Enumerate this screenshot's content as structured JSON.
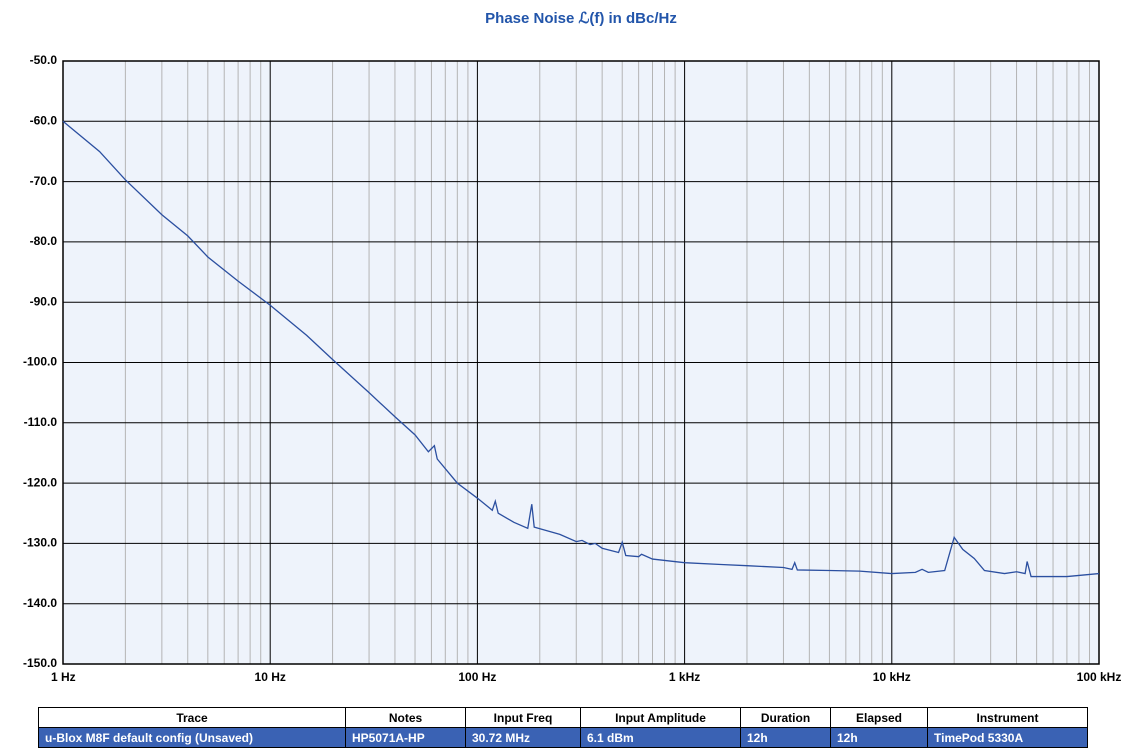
{
  "chart_data": {
    "type": "line",
    "title": "Phase Noise ℒ(f) in dBc/Hz",
    "x": [
      1,
      1.5,
      2,
      3,
      4,
      5,
      7,
      10,
      15,
      20,
      30,
      40,
      50,
      58,
      62,
      64,
      80,
      100,
      118,
      122,
      126,
      150,
      175,
      183,
      188,
      250,
      300,
      320,
      350,
      370,
      400,
      480,
      500,
      520,
      600,
      620,
      700,
      1000,
      1500,
      2000,
      3000,
      3300,
      3400,
      3500,
      5000,
      7000,
      10000,
      13000,
      14000,
      15000,
      18000,
      20000,
      22000,
      25000,
      28000,
      35000,
      40000,
      44000,
      45000,
      47000,
      70000,
      100000
    ],
    "values": [
      -60,
      -65,
      -69.7,
      -75.5,
      -79,
      -82.5,
      -86.5,
      -90.5,
      -95.5,
      -99.5,
      -105,
      -109,
      -112,
      -114.8,
      -113.8,
      -116,
      -120,
      -122.5,
      -124.5,
      -123,
      -125,
      -126.5,
      -127.5,
      -123.5,
      -127.3,
      -128.5,
      -129.7,
      -129.5,
      -130.2,
      -130,
      -130.8,
      -131.5,
      -129.8,
      -132,
      -132.2,
      -131.8,
      -132.6,
      -133.2,
      -133.5,
      -133.7,
      -134,
      -134.3,
      -133.2,
      -134.4,
      -134.5,
      -134.6,
      -135,
      -134.8,
      -134.3,
      -134.8,
      -134.5,
      -129,
      -131,
      -132.5,
      -134.5,
      -135,
      -134.7,
      -135,
      -133,
      -135.5,
      -135.5,
      -135
    ],
    "color": "#2b4fa0",
    "xscale": "log",
    "grid": true,
    "minor_grid": true,
    "xlim": [
      1,
      100000
    ],
    "xticks": [
      {
        "value": 1,
        "label": "1 Hz"
      },
      {
        "value": 10,
        "label": "10 Hz"
      },
      {
        "value": 100,
        "label": "100 Hz"
      },
      {
        "value": 1000,
        "label": "1 kHz"
      },
      {
        "value": 10000,
        "label": "10 kHz"
      },
      {
        "value": 100000,
        "label": "100 kHz"
      }
    ],
    "ylim": [
      -150,
      -50
    ],
    "yticks": [
      {
        "value": -50,
        "label": "-50.0"
      },
      {
        "value": -60,
        "label": "-60.0"
      },
      {
        "value": -70,
        "label": "-70.0"
      },
      {
        "value": -80,
        "label": "-80.0"
      },
      {
        "value": -90,
        "label": "-90.0"
      },
      {
        "value": -100,
        "label": "-100.0"
      },
      {
        "value": -110,
        "label": "-110.0"
      },
      {
        "value": -120,
        "label": "-120.0"
      },
      {
        "value": -130,
        "label": "-130.0"
      },
      {
        "value": -140,
        "label": "-140.0"
      },
      {
        "value": -150,
        "label": "-150.0"
      }
    ]
  },
  "table": {
    "headers": [
      "Trace",
      "Notes",
      "Input Freq",
      "Input Amplitude",
      "Duration",
      "Elapsed",
      "Instrument"
    ],
    "rows": [
      [
        "u-Blox M8F default config (Unsaved)",
        "HP5071A-HP",
        "30.72 MHz",
        "6.1 dBm",
        "12h",
        "12h",
        "TimePod 5330A"
      ]
    ]
  }
}
